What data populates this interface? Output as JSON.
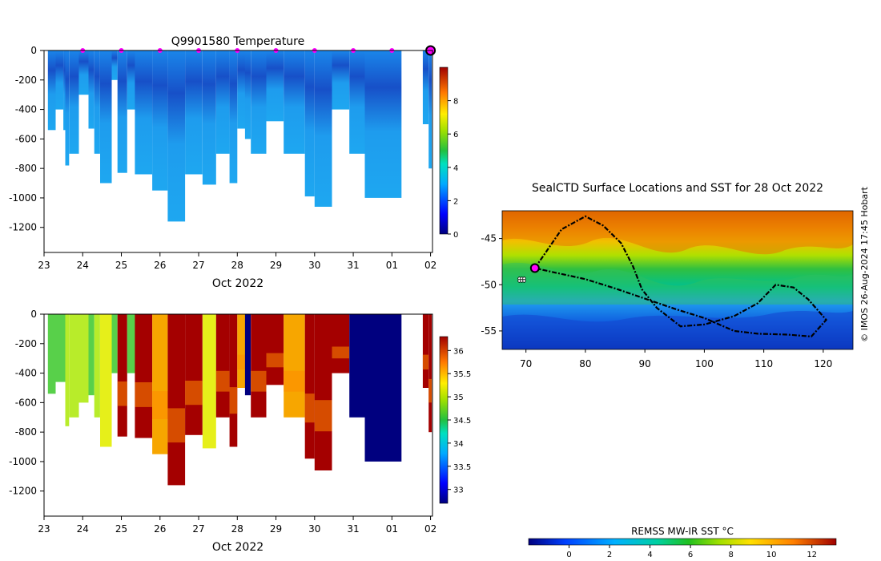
{
  "colors": {
    "temp_profile_light": "#1ea7f0",
    "temp_profile_mid": "#1a7fe6",
    "temp_profile_dark": "#1750c8",
    "marker": "#ff00ff",
    "track": "#000000",
    "sal_dark_red": "#a40000",
    "sal_orange": "#f7a600",
    "sal_navy": "#00007f"
  },
  "chart_data": [
    {
      "id": "temperature-section",
      "type": "heatmap",
      "title": "Q9901580  Temperature",
      "xlabel": "Oct 2022",
      "ylabel": "",
      "x_ticks": [
        "23",
        "24",
        "25",
        "26",
        "27",
        "28",
        "29",
        "30",
        "31",
        "01",
        "02"
      ],
      "y_ticks": [
        "0",
        "-200",
        "-400",
        "-600",
        "-800",
        "-1000",
        "-1200"
      ],
      "ylim": [
        -1370,
        0
      ],
      "x_range_days": [
        23,
        33.05
      ],
      "markers_x_days": [
        24,
        25,
        26,
        27,
        28,
        29,
        30,
        31,
        32
      ],
      "last_profile_marker_day": 33,
      "colorbar": {
        "range": [
          0,
          10
        ],
        "tick_labels": [
          "0",
          "2",
          "4",
          "6",
          "8"
        ]
      },
      "profiles": [
        {
          "x0": 23.1,
          "x1": 23.3,
          "depth": 540,
          "tone": "mid"
        },
        {
          "x0": 23.3,
          "x1": 23.5,
          "depth": 400,
          "tone": "mid"
        },
        {
          "x0": 23.5,
          "x1": 23.55,
          "depth": 540,
          "tone": "mid"
        },
        {
          "x0": 23.55,
          "x1": 23.65,
          "depth": 780,
          "tone": "light"
        },
        {
          "x0": 23.65,
          "x1": 23.9,
          "depth": 700,
          "tone": "light"
        },
        {
          "x0": 23.9,
          "x1": 24.15,
          "depth": 300,
          "tone": "light"
        },
        {
          "x0": 24.15,
          "x1": 24.3,
          "depth": 530,
          "tone": "light"
        },
        {
          "x0": 24.3,
          "x1": 24.45,
          "depth": 700,
          "tone": "light"
        },
        {
          "x0": 24.45,
          "x1": 24.75,
          "depth": 900,
          "tone": "light"
        },
        {
          "x0": 24.75,
          "x1": 24.9,
          "depth": 200,
          "tone": "light"
        },
        {
          "x0": 24.9,
          "x1": 25.15,
          "depth": 830,
          "tone": "light"
        },
        {
          "x0": 25.15,
          "x1": 25.35,
          "depth": 400,
          "tone": "light"
        },
        {
          "x0": 25.35,
          "x1": 25.8,
          "depth": 840,
          "tone": "light"
        },
        {
          "x0": 25.8,
          "x1": 26.2,
          "depth": 950,
          "tone": "light"
        },
        {
          "x0": 26.2,
          "x1": 26.65,
          "depth": 1160,
          "tone": "light"
        },
        {
          "x0": 26.65,
          "x1": 27.1,
          "depth": 840,
          "tone": "light"
        },
        {
          "x0": 27.1,
          "x1": 27.45,
          "depth": 910,
          "tone": "light"
        },
        {
          "x0": 27.45,
          "x1": 27.8,
          "depth": 700,
          "tone": "light"
        },
        {
          "x0": 27.8,
          "x1": 28.0,
          "depth": 900,
          "tone": "light"
        },
        {
          "x0": 28.0,
          "x1": 28.2,
          "depth": 530,
          "tone": "light"
        },
        {
          "x0": 28.2,
          "x1": 28.35,
          "depth": 600,
          "tone": "light"
        },
        {
          "x0": 28.35,
          "x1": 28.75,
          "depth": 700,
          "tone": "light"
        },
        {
          "x0": 28.75,
          "x1": 29.2,
          "depth": 480,
          "tone": "light"
        },
        {
          "x0": 29.2,
          "x1": 29.75,
          "depth": 700,
          "tone": "light"
        },
        {
          "x0": 29.75,
          "x1": 30.0,
          "depth": 990,
          "tone": "light"
        },
        {
          "x0": 30.0,
          "x1": 30.45,
          "depth": 1060,
          "tone": "light"
        },
        {
          "x0": 30.45,
          "x1": 30.9,
          "depth": 400,
          "tone": "light"
        },
        {
          "x0": 30.9,
          "x1": 31.3,
          "depth": 700,
          "tone": "light"
        },
        {
          "x0": 31.3,
          "x1": 32.25,
          "depth": 1000,
          "tone": "light"
        },
        {
          "x0": 32.8,
          "x1": 32.95,
          "depth": 500,
          "tone": "mid"
        },
        {
          "x0": 32.95,
          "x1": 33.03,
          "depth": 800,
          "tone": "mid"
        }
      ]
    },
    {
      "id": "salinity-section",
      "type": "heatmap",
      "title": "",
      "xlabel": "Oct 2022",
      "ylabel": "",
      "x_ticks": [
        "23",
        "24",
        "25",
        "26",
        "27",
        "28",
        "29",
        "30",
        "31",
        "01",
        "02"
      ],
      "y_ticks": [
        "0",
        "-200",
        "-400",
        "-600",
        "-800",
        "-1000",
        "-1200"
      ],
      "ylim": [
        -1370,
        0
      ],
      "x_range_days": [
        23,
        33.05
      ],
      "colorbar": {
        "range": [
          32.7,
          36.3
        ],
        "tick_labels": [
          "33",
          "33.5",
          "34",
          "34.5",
          "35",
          "35.5",
          "36"
        ]
      },
      "profiles": [
        {
          "x0": 23.1,
          "x1": 23.3,
          "depth": 540,
          "tone": "green"
        },
        {
          "x0": 23.3,
          "x1": 23.55,
          "depth": 460,
          "tone": "green"
        },
        {
          "x0": 23.55,
          "x1": 23.65,
          "depth": 760,
          "tone": "yellowgreen"
        },
        {
          "x0": 23.65,
          "x1": 23.9,
          "depth": 700,
          "tone": "yellowgreen"
        },
        {
          "x0": 23.9,
          "x1": 24.15,
          "depth": 600,
          "tone": "yellowgreen"
        },
        {
          "x0": 24.15,
          "x1": 24.3,
          "depth": 550,
          "tone": "green"
        },
        {
          "x0": 24.3,
          "x1": 24.45,
          "depth": 700,
          "tone": "yellowgreen"
        },
        {
          "x0": 24.45,
          "x1": 24.75,
          "depth": 900,
          "tone": "yellow"
        },
        {
          "x0": 24.75,
          "x1": 24.9,
          "depth": 400,
          "tone": "green"
        },
        {
          "x0": 24.9,
          "x1": 25.15,
          "depth": 830,
          "tone": "darkred"
        },
        {
          "x0": 25.15,
          "x1": 25.35,
          "depth": 400,
          "tone": "green"
        },
        {
          "x0": 25.35,
          "x1": 25.8,
          "depth": 840,
          "tone": "darkred"
        },
        {
          "x0": 25.8,
          "x1": 26.2,
          "depth": 950,
          "tone": "orange"
        },
        {
          "x0": 26.2,
          "x1": 26.65,
          "depth": 1160,
          "tone": "darkred"
        },
        {
          "x0": 26.65,
          "x1": 27.1,
          "depth": 820,
          "tone": "darkred"
        },
        {
          "x0": 27.1,
          "x1": 27.45,
          "depth": 910,
          "tone": "yellow"
        },
        {
          "x0": 27.45,
          "x1": 27.8,
          "depth": 700,
          "tone": "darkred"
        },
        {
          "x0": 27.8,
          "x1": 28.0,
          "depth": 900,
          "tone": "darkred"
        },
        {
          "x0": 28.0,
          "x1": 28.2,
          "depth": 500,
          "tone": "orange"
        },
        {
          "x0": 28.2,
          "x1": 28.35,
          "depth": 550,
          "tone": "navy"
        },
        {
          "x0": 28.35,
          "x1": 28.75,
          "depth": 700,
          "tone": "darkred"
        },
        {
          "x0": 28.75,
          "x1": 29.2,
          "depth": 480,
          "tone": "darkred"
        },
        {
          "x0": 29.2,
          "x1": 29.75,
          "depth": 700,
          "tone": "orange"
        },
        {
          "x0": 29.75,
          "x1": 30.0,
          "depth": 980,
          "tone": "darkred"
        },
        {
          "x0": 30.0,
          "x1": 30.45,
          "depth": 1060,
          "tone": "darkred"
        },
        {
          "x0": 30.45,
          "x1": 30.9,
          "depth": 400,
          "tone": "darkred"
        },
        {
          "x0": 30.9,
          "x1": 31.3,
          "depth": 700,
          "tone": "navy"
        },
        {
          "x0": 31.3,
          "x1": 32.25,
          "depth": 1000,
          "tone": "navy"
        },
        {
          "x0": 32.8,
          "x1": 32.95,
          "depth": 500,
          "tone": "darkred"
        },
        {
          "x0": 32.95,
          "x1": 33.03,
          "depth": 800,
          "tone": "darkred"
        }
      ]
    },
    {
      "id": "sst-map",
      "type": "heatmap",
      "title": "SealCTD Surface Locations and SST for 28 Oct 2022",
      "xlabel": "",
      "ylabel": "",
      "xlim": [
        66,
        125
      ],
      "ylim": [
        -57,
        -42
      ],
      "x_ticks": [
        "70",
        "80",
        "90",
        "100",
        "110",
        "120"
      ],
      "y_ticks": [
        "-45",
        "-50",
        "-55"
      ],
      "x_tick_values": [
        70,
        80,
        90,
        100,
        110,
        120
      ],
      "y_tick_values": [
        -45,
        -50,
        -55
      ],
      "current_position": {
        "lon": 71.5,
        "lat": -48.2
      },
      "start_position": {
        "lon": 69.3,
        "lat": -49.5
      },
      "tracks": [
        [
          [
            71.5,
            -48.2
          ],
          [
            73,
            -46.8
          ],
          [
            76,
            -44
          ],
          [
            80,
            -42.6
          ],
          [
            83,
            -43.6
          ],
          [
            86,
            -45.5
          ],
          [
            88,
            -48
          ],
          [
            89.5,
            -50.5
          ],
          [
            92,
            -52.5
          ],
          [
            96,
            -54.5
          ],
          [
            100,
            -54.3
          ],
          [
            105,
            -53.4
          ],
          [
            109,
            -52
          ],
          [
            112,
            -50
          ],
          [
            115,
            -50.3
          ],
          [
            117.5,
            -51.6
          ],
          [
            120.5,
            -53.8
          ],
          [
            118,
            -55.6
          ],
          [
            114,
            -55.4
          ],
          [
            109,
            -55.3
          ],
          [
            105,
            -55
          ],
          [
            100,
            -53.6
          ],
          [
            95,
            -52.6
          ],
          [
            90,
            -51.5
          ],
          [
            85,
            -50.4
          ],
          [
            80,
            -49.4
          ],
          [
            75,
            -48.7
          ],
          [
            71.5,
            -48.2
          ]
        ]
      ],
      "credit": "© IMOS 26-Aug-2024 17:45 Hobart",
      "colorbar": {
        "label": "REMSS MW-IR SST °C",
        "range": [
          -2,
          13.2
        ],
        "tick_values": [
          0,
          2,
          4,
          6,
          8,
          10,
          12
        ],
        "tick_labels": [
          "0",
          "2",
          "4",
          "6",
          "8",
          "10",
          "12"
        ]
      }
    }
  ]
}
